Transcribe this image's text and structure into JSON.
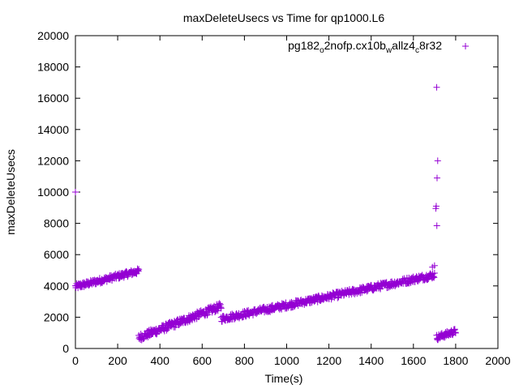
{
  "chart_data": {
    "type": "scatter",
    "title": "maxDeleteUsecs vs Time for qp1000.L6",
    "xlabel": "Time(s)",
    "ylabel": "maxDeleteUsecs",
    "xlim": [
      0,
      2000
    ],
    "ylim": [
      0,
      20000
    ],
    "x_ticks": [
      0,
      200,
      400,
      600,
      800,
      1000,
      1200,
      1400,
      1600,
      1800,
      2000
    ],
    "y_ticks": [
      0,
      2000,
      4000,
      6000,
      8000,
      10000,
      12000,
      14000,
      16000,
      18000,
      20000
    ],
    "x_tick_labels": [
      "0",
      "200",
      "400",
      "600",
      "800",
      "1000",
      "1200",
      "1400",
      "1600",
      "1800",
      "2000"
    ],
    "y_tick_labels": [
      "0",
      "2000",
      "4000",
      "6000",
      "8000",
      "10000",
      "12000",
      "14000",
      "16000",
      "18000",
      "20000"
    ],
    "grid": false,
    "legend_position": "top-right",
    "series": [
      {
        "legend_parts": [
          "pg182",
          "o",
          "2nofp.cx10b",
          "w",
          "allz4",
          "c",
          "8r32"
        ],
        "color": "#9400d3",
        "marker": "plus",
        "segments": [
          {
            "x": [
              0,
              300
            ],
            "y": [
              3950,
              4950
            ],
            "n": 150,
            "jitter": 180
          },
          {
            "x": [
              300,
              690
            ],
            "y": [
              700,
              2700
            ],
            "n": 200,
            "jitter": 230
          },
          {
            "x": [
              690,
              1700
            ],
            "y": [
              1900,
              4700
            ],
            "n": 450,
            "jitter": 200
          },
          {
            "x": [
              1710,
              1800
            ],
            "y": [
              700,
              1100
            ],
            "n": 45,
            "jitter": 180
          }
        ],
        "points": [
          {
            "x": 0,
            "y": 10000
          },
          {
            "x": 1710,
            "y": 16700
          },
          {
            "x": 1715,
            "y": 12000
          },
          {
            "x": 1712,
            "y": 10900
          },
          {
            "x": 1708,
            "y": 9100
          },
          {
            "x": 1706,
            "y": 8950
          },
          {
            "x": 1711,
            "y": 7850
          },
          {
            "x": 1690,
            "y": 5200
          },
          {
            "x": 1700,
            "y": 5300
          }
        ]
      }
    ]
  }
}
